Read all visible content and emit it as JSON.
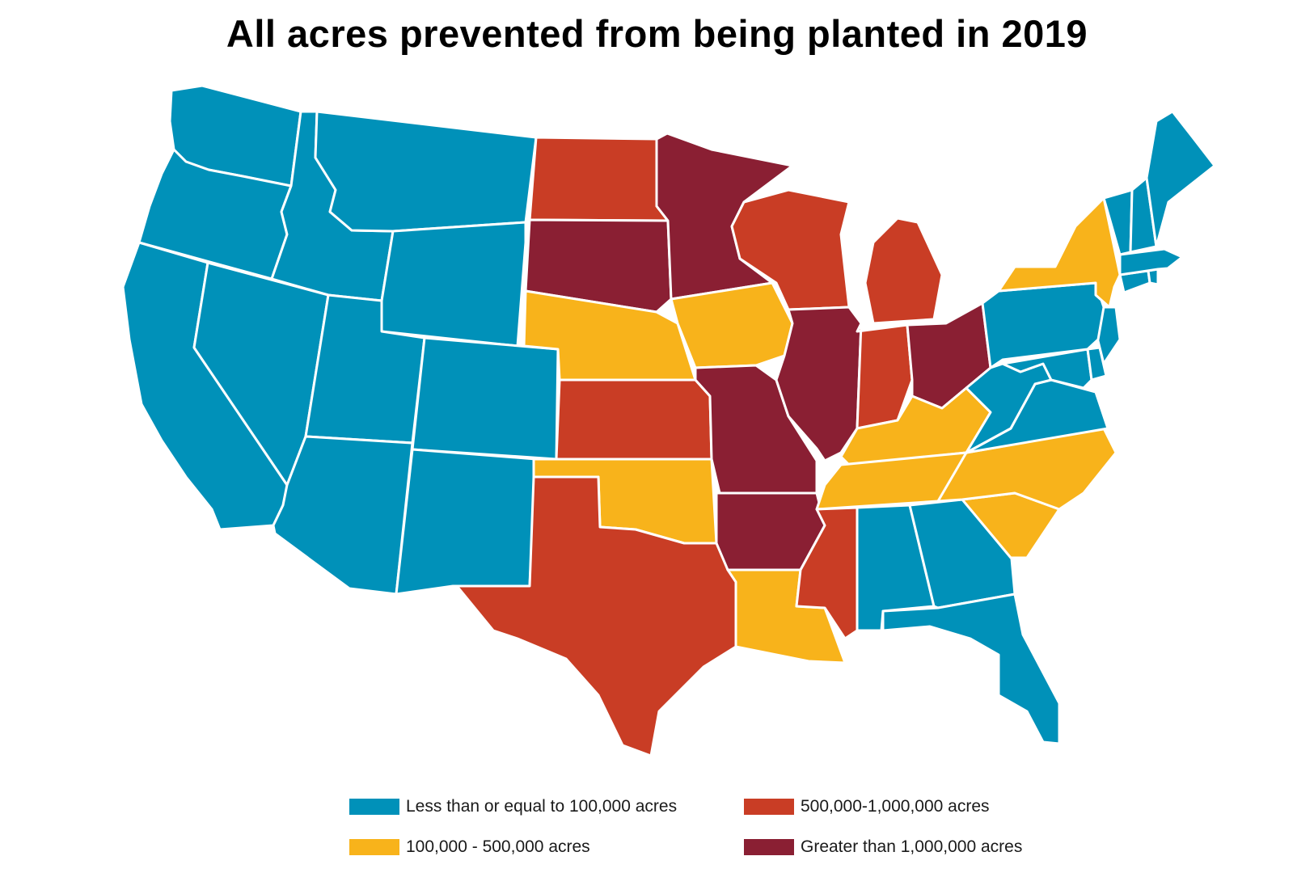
{
  "title": "All acres prevented from being planted in 2019",
  "colors": {
    "low": "#0091b9",
    "mid": "#f8b31b",
    "high": "#c93d25",
    "highest": "#8a1f33",
    "border": "#ffffff"
  },
  "legend": [
    {
      "key": "low",
      "label": "Less than or equal to 100,000 acres"
    },
    {
      "key": "mid",
      "label": "100,000 - 500,000 acres"
    },
    {
      "key": "high",
      "label": "500,000-1,000,000 acres"
    },
    {
      "key": "highest",
      "label": "Greater than 1,000,000 acres"
    }
  ],
  "states": [
    {
      "name": "Washington",
      "category": "low"
    },
    {
      "name": "Oregon",
      "category": "low"
    },
    {
      "name": "California",
      "category": "low"
    },
    {
      "name": "Idaho",
      "category": "low"
    },
    {
      "name": "Nevada",
      "category": "low"
    },
    {
      "name": "Montana",
      "category": "low"
    },
    {
      "name": "Wyoming",
      "category": "low"
    },
    {
      "name": "Utah",
      "category": "low"
    },
    {
      "name": "Arizona",
      "category": "low"
    },
    {
      "name": "Colorado",
      "category": "low"
    },
    {
      "name": "New Mexico",
      "category": "low"
    },
    {
      "name": "North Dakota",
      "category": "high"
    },
    {
      "name": "South Dakota",
      "category": "highest"
    },
    {
      "name": "Nebraska",
      "category": "mid"
    },
    {
      "name": "Kansas",
      "category": "high"
    },
    {
      "name": "Oklahoma",
      "category": "mid"
    },
    {
      "name": "Texas",
      "category": "high"
    },
    {
      "name": "Minnesota",
      "category": "highest"
    },
    {
      "name": "Iowa",
      "category": "mid"
    },
    {
      "name": "Missouri",
      "category": "highest"
    },
    {
      "name": "Arkansas",
      "category": "highest"
    },
    {
      "name": "Louisiana",
      "category": "mid"
    },
    {
      "name": "Wisconsin",
      "category": "high"
    },
    {
      "name": "Illinois",
      "category": "highest"
    },
    {
      "name": "Michigan",
      "category": "high"
    },
    {
      "name": "Indiana",
      "category": "high"
    },
    {
      "name": "Ohio",
      "category": "highest"
    },
    {
      "name": "Kentucky",
      "category": "mid"
    },
    {
      "name": "Tennessee",
      "category": "mid"
    },
    {
      "name": "Mississippi",
      "category": "high"
    },
    {
      "name": "Alabama",
      "category": "low"
    },
    {
      "name": "Georgia",
      "category": "low"
    },
    {
      "name": "Florida",
      "category": "low"
    },
    {
      "name": "South Carolina",
      "category": "mid"
    },
    {
      "name": "North Carolina",
      "category": "mid"
    },
    {
      "name": "Virginia",
      "category": "low"
    },
    {
      "name": "West Virginia",
      "category": "low"
    },
    {
      "name": "Maryland",
      "category": "low"
    },
    {
      "name": "Delaware",
      "category": "low"
    },
    {
      "name": "New Jersey",
      "category": "low"
    },
    {
      "name": "Pennsylvania",
      "category": "low"
    },
    {
      "name": "New York",
      "category": "mid"
    },
    {
      "name": "Connecticut",
      "category": "low"
    },
    {
      "name": "Rhode Island",
      "category": "low"
    },
    {
      "name": "Massachusetts",
      "category": "low"
    },
    {
      "name": "Vermont",
      "category": "low"
    },
    {
      "name": "New Hampshire",
      "category": "low"
    },
    {
      "name": "Maine",
      "category": "low"
    }
  ]
}
